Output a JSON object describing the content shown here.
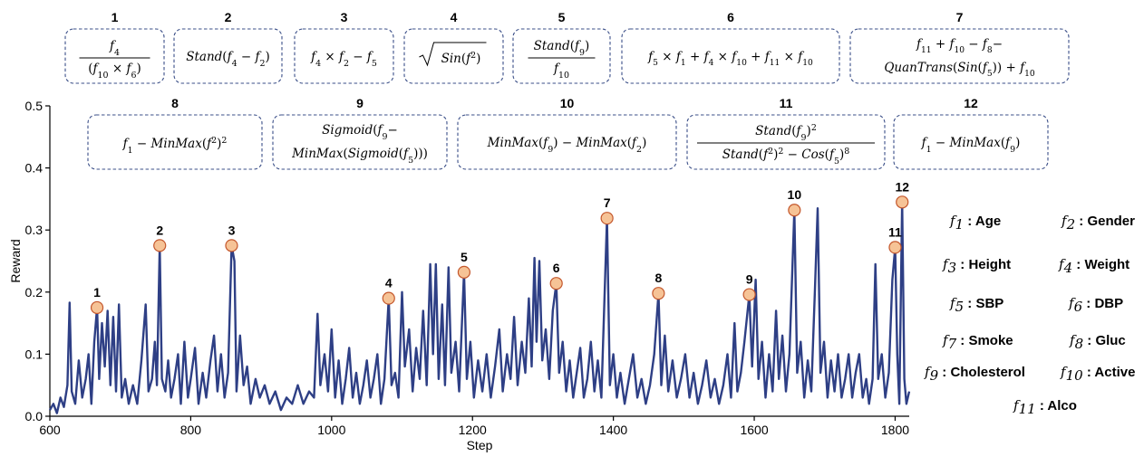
{
  "chart_data": {
    "type": "line",
    "xlabel": "Step",
    "ylabel": "Reward",
    "xlim": [
      600,
      1820
    ],
    "ylim": [
      0,
      0.5
    ],
    "xticks": [
      "600",
      "800",
      "1000",
      "1200",
      "1400",
      "1600",
      "1800"
    ],
    "yticks": [
      "0.0",
      "0.1",
      "0.2",
      "0.3",
      "0.4",
      "0.5"
    ],
    "line_color": "#2e3f85",
    "marker_fill": "#f6c396",
    "marker_edge": "#c4572c",
    "series": [
      {
        "name": "Reward",
        "points": [
          [
            600,
            0.01
          ],
          [
            605,
            0.02
          ],
          [
            610,
            0.005
          ],
          [
            615,
            0.03
          ],
          [
            620,
            0.015
          ],
          [
            625,
            0.05
          ],
          [
            628,
            0.183
          ],
          [
            631,
            0.04
          ],
          [
            636,
            0.02
          ],
          [
            641,
            0.09
          ],
          [
            646,
            0.03
          ],
          [
            651,
            0.06
          ],
          [
            655,
            0.1
          ],
          [
            659,
            0.02
          ],
          [
            663,
            0.12
          ],
          [
            667,
            0.175
          ],
          [
            670,
            0.06
          ],
          [
            674,
            0.15
          ],
          [
            678,
            0.08
          ],
          [
            682,
            0.17
          ],
          [
            686,
            0.05
          ],
          [
            690,
            0.16
          ],
          [
            694,
            0.04
          ],
          [
            698,
            0.18
          ],
          [
            702,
            0.03
          ],
          [
            707,
            0.06
          ],
          [
            712,
            0.02
          ],
          [
            718,
            0.05
          ],
          [
            724,
            0.02
          ],
          [
            730,
            0.09
          ],
          [
            736,
            0.18
          ],
          [
            740,
            0.04
          ],
          [
            745,
            0.06
          ],
          [
            749,
            0.12
          ],
          [
            752,
            0.05
          ],
          [
            756,
            0.275
          ],
          [
            759,
            0.06
          ],
          [
            764,
            0.04
          ],
          [
            768,
            0.09
          ],
          [
            772,
            0.03
          ],
          [
            777,
            0.06
          ],
          [
            782,
            0.1
          ],
          [
            786,
            0.02
          ],
          [
            791,
            0.12
          ],
          [
            796,
            0.03
          ],
          [
            800,
            0.06
          ],
          [
            806,
            0.11
          ],
          [
            811,
            0.02
          ],
          [
            817,
            0.07
          ],
          [
            822,
            0.03
          ],
          [
            828,
            0.09
          ],
          [
            833,
            0.13
          ],
          [
            838,
            0.04
          ],
          [
            843,
            0.1
          ],
          [
            848,
            0.03
          ],
          [
            853,
            0.07
          ],
          [
            858,
            0.275
          ],
          [
            862,
            0.25
          ],
          [
            865,
            0.04
          ],
          [
            870,
            0.13
          ],
          [
            875,
            0.05
          ],
          [
            880,
            0.08
          ],
          [
            885,
            0.02
          ],
          [
            892,
            0.06
          ],
          [
            898,
            0.03
          ],
          [
            905,
            0.05
          ],
          [
            912,
            0.02
          ],
          [
            920,
            0.04
          ],
          [
            928,
            0.01
          ],
          [
            936,
            0.03
          ],
          [
            944,
            0.02
          ],
          [
            952,
            0.05
          ],
          [
            960,
            0.02
          ],
          [
            968,
            0.04
          ],
          [
            975,
            0.03
          ],
          [
            980,
            0.165
          ],
          [
            984,
            0.05
          ],
          [
            990,
            0.1
          ],
          [
            995,
            0.04
          ],
          [
            1000,
            0.14
          ],
          [
            1005,
            0.03
          ],
          [
            1010,
            0.09
          ],
          [
            1015,
            0.02
          ],
          [
            1020,
            0.06
          ],
          [
            1025,
            0.11
          ],
          [
            1030,
            0.03
          ],
          [
            1035,
            0.07
          ],
          [
            1040,
            0.02
          ],
          [
            1045,
            0.05
          ],
          [
            1050,
            0.09
          ],
          [
            1055,
            0.03
          ],
          [
            1060,
            0.06
          ],
          [
            1065,
            0.1
          ],
          [
            1070,
            0.02
          ],
          [
            1075,
            0.06
          ],
          [
            1081,
            0.19
          ],
          [
            1085,
            0.05
          ],
          [
            1090,
            0.07
          ],
          [
            1095,
            0.03
          ],
          [
            1100,
            0.2
          ],
          [
            1104,
            0.08
          ],
          [
            1110,
            0.14
          ],
          [
            1115,
            0.04
          ],
          [
            1120,
            0.11
          ],
          [
            1125,
            0.06
          ],
          [
            1130,
            0.17
          ],
          [
            1135,
            0.05
          ],
          [
            1140,
            0.245
          ],
          [
            1144,
            0.1
          ],
          [
            1148,
            0.245
          ],
          [
            1152,
            0.06
          ],
          [
            1157,
            0.18
          ],
          [
            1161,
            0.05
          ],
          [
            1166,
            0.24
          ],
          [
            1170,
            0.07
          ],
          [
            1176,
            0.12
          ],
          [
            1181,
            0.04
          ],
          [
            1188,
            0.232
          ],
          [
            1192,
            0.06
          ],
          [
            1197,
            0.12
          ],
          [
            1202,
            0.03
          ],
          [
            1208,
            0.09
          ],
          [
            1214,
            0.04
          ],
          [
            1220,
            0.1
          ],
          [
            1226,
            0.03
          ],
          [
            1232,
            0.08
          ],
          [
            1238,
            0.14
          ],
          [
            1243,
            0.04
          ],
          [
            1249,
            0.1
          ],
          [
            1254,
            0.06
          ],
          [
            1259,
            0.16
          ],
          [
            1264,
            0.05
          ],
          [
            1270,
            0.12
          ],
          [
            1275,
            0.07
          ],
          [
            1280,
            0.19
          ],
          [
            1284,
            0.08
          ],
          [
            1288,
            0.255
          ],
          [
            1291,
            0.12
          ],
          [
            1295,
            0.25
          ],
          [
            1299,
            0.09
          ],
          [
            1304,
            0.14
          ],
          [
            1309,
            0.06
          ],
          [
            1314,
            0.17
          ],
          [
            1319,
            0.214
          ],
          [
            1323,
            0.07
          ],
          [
            1328,
            0.12
          ],
          [
            1333,
            0.04
          ],
          [
            1338,
            0.09
          ],
          [
            1343,
            0.03
          ],
          [
            1348,
            0.07
          ],
          [
            1353,
            0.11
          ],
          [
            1358,
            0.03
          ],
          [
            1363,
            0.06
          ],
          [
            1368,
            0.12
          ],
          [
            1373,
            0.04
          ],
          [
            1378,
            0.09
          ],
          [
            1383,
            0.03
          ],
          [
            1391,
            0.319
          ],
          [
            1395,
            0.05
          ],
          [
            1400,
            0.1
          ],
          [
            1405,
            0.03
          ],
          [
            1410,
            0.07
          ],
          [
            1416,
            0.02
          ],
          [
            1422,
            0.06
          ],
          [
            1428,
            0.1
          ],
          [
            1434,
            0.03
          ],
          [
            1440,
            0.06
          ],
          [
            1446,
            0.02
          ],
          [
            1452,
            0.05
          ],
          [
            1458,
            0.1
          ],
          [
            1464,
            0.198
          ],
          [
            1468,
            0.05
          ],
          [
            1473,
            0.13
          ],
          [
            1478,
            0.04
          ],
          [
            1484,
            0.09
          ],
          [
            1490,
            0.03
          ],
          [
            1496,
            0.06
          ],
          [
            1502,
            0.1
          ],
          [
            1508,
            0.03
          ],
          [
            1514,
            0.07
          ],
          [
            1520,
            0.02
          ],
          [
            1526,
            0.05
          ],
          [
            1532,
            0.09
          ],
          [
            1538,
            0.03
          ],
          [
            1544,
            0.06
          ],
          [
            1550,
            0.02
          ],
          [
            1556,
            0.05
          ],
          [
            1562,
            0.1
          ],
          [
            1567,
            0.03
          ],
          [
            1572,
            0.15
          ],
          [
            1576,
            0.04
          ],
          [
            1581,
            0.07
          ],
          [
            1586,
            0.12
          ],
          [
            1593,
            0.196
          ],
          [
            1597,
            0.08
          ],
          [
            1602,
            0.22
          ],
          [
            1606,
            0.06
          ],
          [
            1611,
            0.12
          ],
          [
            1616,
            0.03
          ],
          [
            1621,
            0.1
          ],
          [
            1626,
            0.04
          ],
          [
            1631,
            0.17
          ],
          [
            1635,
            0.06
          ],
          [
            1640,
            0.13
          ],
          [
            1645,
            0.04
          ],
          [
            1650,
            0.1
          ],
          [
            1657,
            0.332
          ],
          [
            1661,
            0.07
          ],
          [
            1666,
            0.12
          ],
          [
            1671,
            0.03
          ],
          [
            1676,
            0.09
          ],
          [
            1681,
            0.04
          ],
          [
            1686,
            0.2
          ],
          [
            1690,
            0.335
          ],
          [
            1694,
            0.07
          ],
          [
            1699,
            0.12
          ],
          [
            1704,
            0.03
          ],
          [
            1709,
            0.09
          ],
          [
            1714,
            0.04
          ],
          [
            1719,
            0.1
          ],
          [
            1724,
            0.03
          ],
          [
            1729,
            0.06
          ],
          [
            1734,
            0.1
          ],
          [
            1739,
            0.03
          ],
          [
            1744,
            0.07
          ],
          [
            1749,
            0.1
          ],
          [
            1754,
            0.03
          ],
          [
            1759,
            0.06
          ],
          [
            1763,
            0.02
          ],
          [
            1768,
            0.06
          ],
          [
            1772,
            0.245
          ],
          [
            1776,
            0.06
          ],
          [
            1781,
            0.1
          ],
          [
            1786,
            0.03
          ],
          [
            1791,
            0.07
          ],
          [
            1796,
            0.22
          ],
          [
            1800,
            0.272
          ],
          [
            1803,
            0.1
          ],
          [
            1806,
            0.02
          ],
          [
            1810,
            0.345
          ],
          [
            1813,
            0.06
          ],
          [
            1816,
            0.02
          ],
          [
            1820,
            0.04
          ]
        ]
      }
    ],
    "peaks": [
      {
        "label": "1",
        "x": 667,
        "y": 0.175
      },
      {
        "label": "2",
        "x": 756,
        "y": 0.275
      },
      {
        "label": "3",
        "x": 858,
        "y": 0.275
      },
      {
        "label": "4",
        "x": 1081,
        "y": 0.19
      },
      {
        "label": "5",
        "x": 1188,
        "y": 0.232
      },
      {
        "label": "6",
        "x": 1319,
        "y": 0.214
      },
      {
        "label": "7",
        "x": 1391,
        "y": 0.319
      },
      {
        "label": "8",
        "x": 1464,
        "y": 0.198
      },
      {
        "label": "9",
        "x": 1593,
        "y": 0.196
      },
      {
        "label": "10",
        "x": 1657,
        "y": 0.332
      },
      {
        "label": "11",
        "x": 1800,
        "y": 0.272
      },
      {
        "label": "12",
        "x": 1810,
        "y": 0.345
      }
    ],
    "formula_boxes": [
      {
        "num": "1",
        "formula": "f4 / (f10 × f6)"
      },
      {
        "num": "2",
        "formula": "Stand(f4 − f2)"
      },
      {
        "num": "3",
        "formula": "f4 × f2 − f5"
      },
      {
        "num": "4",
        "formula": "√Sin(f5²)"
      },
      {
        "num": "5",
        "formula": "Stand(f9) / f10"
      },
      {
        "num": "6",
        "formula": "f5 × f1 + f4 × f10 + f11 × f10"
      },
      {
        "num": "7",
        "formula": "f11 + f10 − f8 − QuanTrans(Sin(f5)) + f10"
      },
      {
        "num": "8",
        "formula": "f1 − MinMax(f4²)²"
      },
      {
        "num": "9",
        "formula": "Sigmoid(f9 − MinMax(Sigmoid(f5)))"
      },
      {
        "num": "10",
        "formula": "MinMax(f9) − MinMax(f2)"
      },
      {
        "num": "11",
        "formula": "Stand(f9)² / (Stand(f8²)² − Cos(f5)⁸)"
      },
      {
        "num": "12",
        "formula": "f1 − MinMax(f9)"
      }
    ],
    "feature_legend": [
      {
        "sym": "f",
        "sub": "1",
        "name": "Age"
      },
      {
        "sym": "f",
        "sub": "2",
        "name": "Gender"
      },
      {
        "sym": "f",
        "sub": "3",
        "name": "Height"
      },
      {
        "sym": "f",
        "sub": "4",
        "name": "Weight"
      },
      {
        "sym": "f",
        "sub": "5",
        "name": "SBP"
      },
      {
        "sym": "f",
        "sub": "6",
        "name": "DBP"
      },
      {
        "sym": "f",
        "sub": "7",
        "name": "Smoke"
      },
      {
        "sym": "f",
        "sub": "8",
        "name": "Gluc"
      },
      {
        "sym": "f",
        "sub": "9",
        "name": "Cholesterol"
      },
      {
        "sym": "f",
        "sub": "10",
        "name": "Active"
      },
      {
        "sym": "f",
        "sub": "11",
        "name": "Alco"
      }
    ]
  }
}
